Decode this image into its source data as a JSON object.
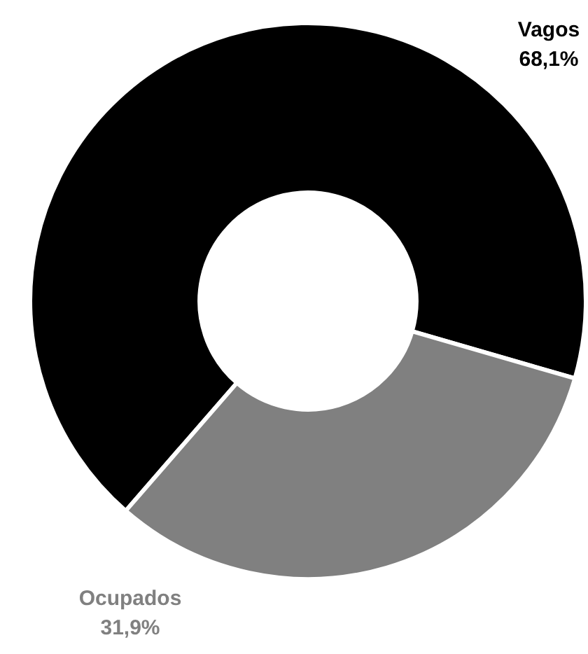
{
  "chart_data": {
    "type": "donut",
    "categories": [
      "Vagos",
      "Ocupados"
    ],
    "values": [
      68.1,
      31.9
    ],
    "colors": [
      "#000000",
      "#808080"
    ],
    "value_labels": [
      "68,1%",
      "31,9%"
    ],
    "legend": false
  }
}
